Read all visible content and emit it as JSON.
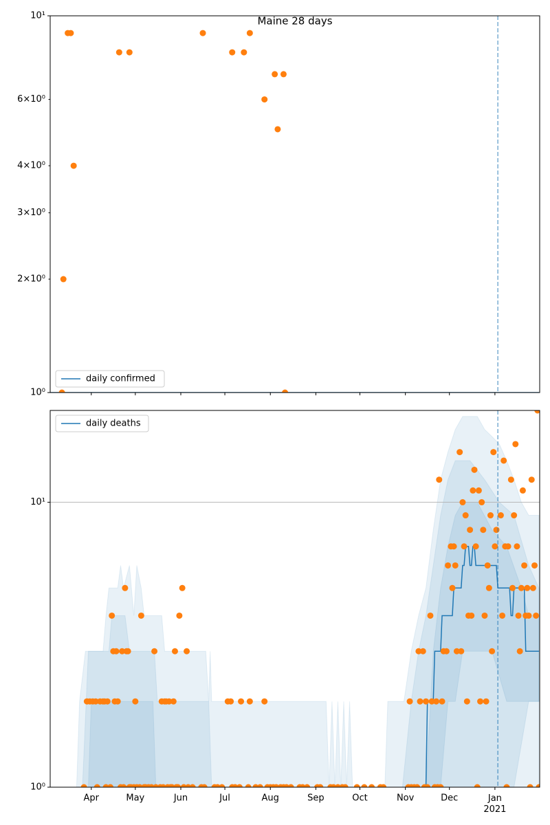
{
  "chart_data": [
    {
      "type": "line",
      "title": "Maine 28 days",
      "log_y": true,
      "grid": true,
      "legend": "lower left",
      "xlim": [
        64,
        397.5
      ],
      "ylim": [
        1,
        10
      ],
      "yticks": [
        {
          "value": 1,
          "label": "10⁰"
        },
        {
          "value": 2,
          "label": "2×10⁰"
        },
        {
          "value": 3,
          "label": "3×10⁰"
        },
        {
          "value": 4,
          "label": "4×10⁰"
        },
        {
          "value": 6,
          "label": "6×10⁰"
        },
        {
          "value": 10,
          "label": "10¹"
        }
      ],
      "vline": 369,
      "vline_color": "#1f77b4",
      "series": [
        {
          "name": "daily confirmed",
          "color": "#1f77b4",
          "x": [
            64,
            397
          ],
          "values": [
            1,
            1
          ]
        }
      ],
      "points": {
        "color": "#ff7f0e",
        "x": [
          72,
          73,
          76,
          78,
          80,
          111,
          118,
          168,
          188,
          196,
          200,
          210,
          217,
          219,
          223,
          224
        ],
        "values": [
          1,
          2,
          9,
          9,
          4,
          8,
          8,
          9,
          8,
          8,
          9,
          6,
          7,
          5,
          7,
          1
        ]
      },
      "bands": []
    },
    {
      "type": "line",
      "log_y": true,
      "grid": true,
      "legend": "upper left",
      "xlim": [
        64,
        397.5
      ],
      "ylim": [
        1,
        21
      ],
      "xticks": [
        {
          "value": 92,
          "label": "Apr"
        },
        {
          "value": 122,
          "label": "May"
        },
        {
          "value": 153,
          "label": "Jun"
        },
        {
          "value": 183,
          "label": "Jul"
        },
        {
          "value": 214,
          "label": "Aug"
        },
        {
          "value": 245,
          "label": "Sep"
        },
        {
          "value": 275,
          "label": "Oct"
        },
        {
          "value": 306,
          "label": "Nov"
        },
        {
          "value": 336,
          "label": "Dec"
        },
        {
          "value": 367,
          "label": "Jan\n2021"
        }
      ],
      "yticks": [
        {
          "value": 1,
          "label": "10⁰"
        },
        {
          "value": 10,
          "label": "10¹"
        }
      ],
      "vline": 369,
      "vline_color": "#1f77b4",
      "series": [
        {
          "name": "daily deaths",
          "color": "#1f77b4",
          "x": [
            320,
            321,
            325,
            326,
            330,
            331,
            338,
            339,
            344,
            345,
            346,
            347,
            349,
            350,
            351,
            352,
            353,
            354,
            368,
            369,
            377,
            378,
            379,
            380,
            387,
            388,
            397
          ],
          "values": [
            1,
            2,
            2,
            3,
            3,
            4,
            4,
            5,
            5,
            6,
            6,
            7,
            7,
            6,
            6,
            7,
            7,
            6,
            6,
            5,
            5,
            4,
            4,
            5,
            5,
            3,
            3
          ]
        }
      ],
      "points": {
        "color": "#ff7f0e",
        "x": [
          87,
          89,
          91,
          93,
          95,
          96,
          98,
          100,
          101,
          102,
          103,
          105,
          106,
          107,
          108,
          109,
          110,
          112,
          113,
          114,
          115,
          116,
          117,
          118,
          119,
          121,
          122,
          123,
          125,
          126,
          128,
          129,
          131,
          133,
          135,
          136,
          139,
          140,
          141,
          142,
          143,
          144,
          145,
          146,
          147,
          148,
          149,
          150,
          151,
          152,
          154,
          155,
          157,
          158,
          161,
          167,
          169,
          176,
          178,
          181,
          185,
          187,
          188,
          190,
          193,
          194,
          199,
          200,
          204,
          207,
          210,
          212,
          214,
          216,
          218,
          221,
          223,
          225,
          228,
          234,
          236,
          239,
          246,
          248,
          255,
          257,
          260,
          263,
          265,
          273,
          278,
          283,
          289,
          291,
          308,
          309,
          310,
          312,
          314,
          315,
          316,
          318,
          319,
          320,
          321,
          323,
          324,
          326,
          327,
          328,
          329,
          330,
          331,
          332,
          334,
          335,
          337,
          338,
          339,
          340,
          341,
          343,
          344,
          345,
          346,
          347,
          348,
          349,
          350,
          351,
          352,
          353,
          354,
          355,
          356,
          357,
          358,
          359,
          360,
          361,
          362,
          363,
          364,
          365,
          366,
          367,
          368,
          371,
          372,
          373,
          374,
          375,
          376,
          378,
          379,
          380,
          381,
          382,
          383,
          384,
          385,
          386,
          387,
          388,
          389,
          390,
          391,
          392,
          393,
          394,
          395,
          396,
          397
        ],
        "values": [
          1,
          2,
          2,
          2,
          2,
          1,
          2,
          2,
          2,
          1,
          2,
          1,
          4,
          3,
          2,
          3,
          2,
          1,
          3,
          1,
          5,
          3,
          3,
          1,
          1,
          1,
          2,
          1,
          1,
          4,
          1,
          1,
          1,
          1,
          3,
          1,
          1,
          2,
          1,
          2,
          2,
          1,
          2,
          1,
          1,
          2,
          3,
          1,
          1,
          4,
          5,
          1,
          3,
          1,
          1,
          1,
          1,
          1,
          1,
          1,
          2,
          2,
          1,
          1,
          1,
          2,
          1,
          2,
          1,
          1,
          2,
          1,
          1,
          1,
          1,
          1,
          1,
          1,
          1,
          1,
          1,
          1,
          1,
          1,
          1,
          1,
          1,
          1,
          1,
          1,
          1,
          1,
          1,
          1,
          1,
          2,
          1,
          1,
          1,
          3,
          2,
          3,
          1,
          2,
          1,
          4,
          2,
          1,
          2,
          1,
          12,
          1,
          2,
          3,
          3,
          6,
          7,
          5,
          7,
          6,
          3,
          15,
          3,
          10,
          7,
          9,
          2,
          4,
          8,
          4,
          11,
          13,
          7,
          1,
          11,
          2,
          10,
          8,
          4,
          2,
          6,
          5,
          9,
          3,
          15,
          7,
          8,
          9,
          4,
          14,
          7,
          1,
          7,
          12,
          5,
          9,
          16,
          7,
          4,
          3,
          5,
          11,
          6,
          4,
          5,
          4,
          1,
          12,
          5,
          6,
          4,
          21,
          1
        ]
      },
      "band_color": "#1f77b4",
      "bands": [
        {
          "x": [
            82,
            84,
            88,
            100,
            102,
            104,
            110,
            112,
            114,
            118,
            121,
            123,
            126,
            128,
            140,
            142,
            170,
            172,
            173,
            174,
            252,
            254,
            256,
            258,
            260,
            262,
            264,
            266,
            268,
            270,
            292,
            294,
            305,
            310,
            315,
            320,
            325,
            330,
            335,
            340,
            345,
            355,
            360,
            365,
            370,
            375,
            380,
            385,
            390,
            397
          ],
          "upper": [
            1,
            2,
            3,
            3,
            4,
            5,
            5,
            6,
            5,
            6,
            4,
            6,
            5,
            4,
            4,
            3,
            3,
            2,
            3,
            2,
            2,
            1,
            2,
            1,
            2,
            1,
            2,
            1,
            2,
            1,
            1,
            2,
            2,
            3,
            4,
            5,
            8,
            12,
            15,
            18,
            20,
            20,
            18,
            17,
            16,
            14,
            12,
            10,
            9,
            9
          ],
          "lower": [
            1,
            1,
            1,
            1,
            1,
            1,
            1,
            1,
            1,
            1,
            1,
            1,
            1,
            1,
            1,
            1,
            1,
            1,
            1,
            1,
            1,
            1,
            1,
            1,
            1,
            1,
            1,
            1,
            1,
            1,
            1,
            1,
            1,
            1,
            1,
            1,
            1,
            1,
            1,
            1,
            1,
            1,
            1,
            1,
            1,
            1,
            1,
            1,
            1,
            1
          ]
        },
        {
          "x": [
            86,
            90,
            104,
            106,
            115,
            118,
            122,
            135,
            137,
            172,
            174,
            304,
            310,
            315,
            320,
            325,
            330,
            335,
            340,
            350,
            360,
            370,
            380,
            390,
            397
          ],
          "upper": [
            1,
            3,
            3,
            4,
            4,
            3,
            3,
            3,
            2,
            2,
            1,
            1,
            2,
            3,
            4,
            6,
            9,
            12,
            14,
            14,
            12,
            10,
            9,
            6,
            5
          ],
          "lower": [
            1,
            1,
            1,
            1,
            1,
            1,
            1,
            1,
            1,
            1,
            1,
            1,
            1,
            1,
            1,
            1,
            1,
            1,
            1,
            1,
            1,
            1,
            1,
            2,
            2
          ]
        },
        {
          "x": [
            90,
            92,
            134,
            136,
            320,
            325,
            330,
            335,
            340,
            345,
            355,
            365,
            375,
            385,
            390,
            397
          ],
          "upper": [
            1,
            2,
            2,
            1,
            1,
            3,
            5,
            7,
            9,
            10,
            10,
            8,
            7,
            5,
            4,
            4
          ],
          "lower": [
            1,
            1,
            1,
            1,
            1,
            1,
            1,
            2,
            2,
            3,
            3,
            3,
            2,
            2,
            2,
            2
          ]
        }
      ]
    }
  ]
}
